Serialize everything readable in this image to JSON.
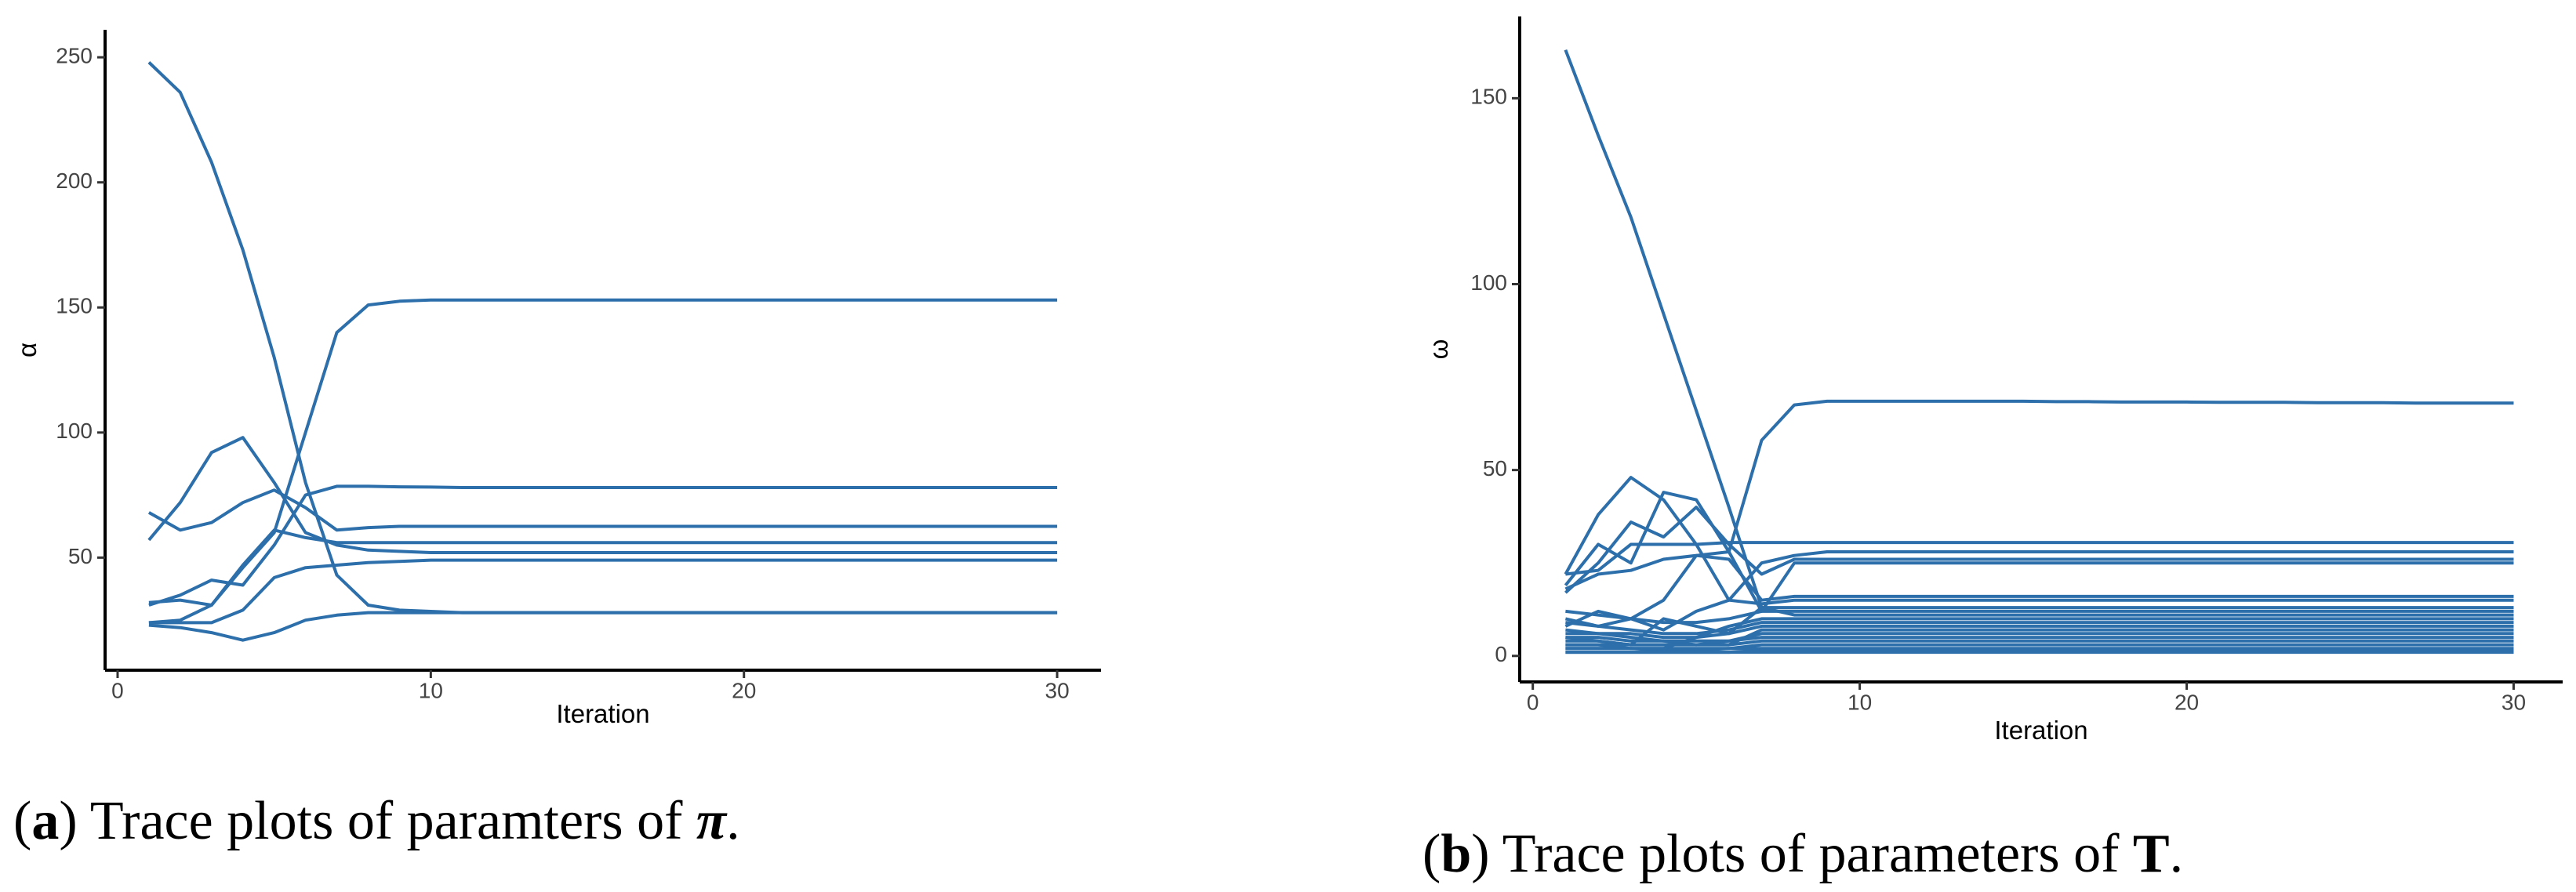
{
  "chart_data": [
    {
      "type": "line",
      "x_label": "Iteration",
      "y_label": "α",
      "color": "#2c6fab",
      "caption": {
        "prefix": "(",
        "label": "a",
        "text": ") Trace plots of paramters of ",
        "symbol": "π",
        "suffix": "."
      },
      "x": [
        1,
        2,
        3,
        4,
        5,
        6,
        7,
        8,
        9,
        10,
        11,
        12,
        13,
        14,
        15,
        16,
        17,
        18,
        19,
        20,
        21,
        22,
        23,
        24,
        25,
        26,
        27,
        28,
        29,
        30
      ],
      "xlim": [
        -0.4,
        31.4
      ],
      "xticks": [
        0,
        10,
        20,
        30
      ],
      "ylim": [
        5,
        261
      ],
      "yticks": [
        50,
        100,
        150,
        200,
        250
      ],
      "series": [
        {
          "values": [
            248,
            236,
            208,
            173,
            130,
            80,
            43,
            31,
            29,
            28.5,
            28,
            28,
            28,
            28,
            28,
            28,
            28,
            28,
            28,
            28,
            28,
            28,
            28,
            28,
            28,
            28,
            28,
            28,
            28,
            28
          ]
        },
        {
          "values": [
            24,
            25,
            31,
            46,
            60,
            100,
            140,
            151,
            152.5,
            153,
            153,
            153,
            153,
            153,
            153,
            153,
            153,
            153,
            153,
            153,
            153,
            153,
            153,
            153,
            153,
            153,
            153,
            153,
            153,
            153
          ]
        },
        {
          "values": [
            23,
            22,
            20,
            17,
            20,
            25,
            27,
            28,
            28,
            28,
            28,
            28,
            28,
            28,
            28,
            28,
            28,
            28,
            28,
            28,
            28,
            28,
            28,
            28,
            28,
            28,
            28,
            28,
            28,
            28
          ]
        },
        {
          "values": [
            57,
            72,
            92,
            98,
            80,
            60,
            55,
            53,
            52.5,
            52,
            52,
            52,
            52,
            52,
            52,
            52,
            52,
            52,
            52,
            52,
            52,
            52,
            52,
            52,
            52,
            52,
            52,
            52,
            52,
            52
          ]
        },
        {
          "values": [
            31,
            35,
            41,
            39,
            55,
            75,
            78.5,
            78.5,
            78.3,
            78.2,
            78,
            78,
            78,
            78,
            78,
            78,
            78,
            78,
            78,
            78,
            78,
            78,
            78,
            78,
            78,
            78,
            78,
            78,
            78,
            78
          ]
        },
        {
          "values": [
            68,
            61,
            64,
            72,
            77,
            70,
            61,
            62,
            62.5,
            62.5,
            62.5,
            62.5,
            62.5,
            62.5,
            62.5,
            62.5,
            62.5,
            62.5,
            62.5,
            62.5,
            62.5,
            62.5,
            62.5,
            62.5,
            62.5,
            62.5,
            62.5,
            62.5,
            62.5,
            62.5
          ]
        },
        {
          "values": [
            32,
            33,
            31,
            47,
            61,
            58,
            56,
            56,
            56,
            56,
            56,
            56,
            56,
            56,
            56,
            56,
            56,
            56,
            56,
            56,
            56,
            56,
            56,
            56,
            56,
            56,
            56,
            56,
            56,
            56
          ]
        },
        {
          "values": [
            24,
            24,
            24,
            29,
            42,
            46,
            47,
            48,
            48.5,
            49,
            49,
            49,
            49,
            49,
            49,
            49,
            49,
            49,
            49,
            49,
            49,
            49,
            49,
            49,
            49,
            49,
            49,
            49,
            49,
            49
          ]
        }
      ]
    },
    {
      "type": "line",
      "x_label": "Iteration",
      "y_label": "ω",
      "color": "#2c6fab",
      "caption": {
        "prefix": "(",
        "label": "b",
        "text": ") Trace plots of parameters of ",
        "symbol": "T",
        "suffix": "."
      },
      "x": [
        1,
        2,
        3,
        4,
        5,
        6,
        7,
        8,
        9,
        10,
        11,
        12,
        13,
        14,
        15,
        16,
        17,
        18,
        19,
        20,
        21,
        22,
        23,
        24,
        25,
        26,
        27,
        28,
        29,
        30
      ],
      "xlim": [
        -0.4,
        31.5
      ],
      "xticks": [
        0,
        10,
        20,
        30
      ],
      "ylim": [
        -7,
        172
      ],
      "yticks": [
        0,
        50,
        100,
        150
      ],
      "series": [
        {
          "values": [
            163,
            140,
            118,
            92,
            66,
            40,
            13,
            11,
            11,
            11,
            11,
            11,
            11,
            11,
            11,
            11,
            11,
            11,
            11,
            11,
            11,
            11,
            11,
            11,
            11,
            11,
            11,
            11,
            11,
            11
          ]
        },
        {
          "values": [
            18,
            22,
            23,
            26,
            27,
            28,
            58,
            67.5,
            68.5,
            68.5,
            68.5,
            68.5,
            68.5,
            68.5,
            68.5,
            68.4,
            68.4,
            68.3,
            68.3,
            68.3,
            68.2,
            68.2,
            68.2,
            68.1,
            68.1,
            68.1,
            68,
            68,
            68,
            68
          ]
        },
        {
          "values": [
            22,
            38,
            48,
            42,
            30,
            15,
            25,
            27,
            28,
            28,
            28,
            28,
            28,
            28,
            28,
            28,
            28,
            28,
            28,
            28,
            28,
            28,
            28,
            28,
            28,
            28,
            28,
            28,
            28,
            28
          ]
        },
        {
          "values": [
            19,
            30,
            25,
            44,
            42,
            28,
            12,
            25,
            25,
            25,
            25,
            25,
            25,
            25,
            25,
            25,
            25,
            25,
            25,
            25,
            25,
            25,
            25,
            25,
            25,
            25,
            25,
            25,
            25,
            25
          ]
        },
        {
          "values": [
            17,
            25,
            36,
            32,
            40,
            30,
            22,
            26,
            26,
            26,
            26,
            26,
            26,
            26,
            26,
            26,
            26,
            26,
            26,
            26,
            26,
            26,
            26,
            26,
            26,
            26,
            26,
            26,
            26,
            26
          ]
        },
        {
          "values": [
            22,
            23,
            30,
            30,
            30,
            30.5,
            30.5,
            30.5,
            30.5,
            30.5,
            30.5,
            30.5,
            30.5,
            30.5,
            30.5,
            30.5,
            30.5,
            30.5,
            30.5,
            30.5,
            30.5,
            30.5,
            30.5,
            30.5,
            30.5,
            30.5,
            30.5,
            30.5,
            30.5,
            30.5
          ]
        },
        {
          "values": [
            10,
            8,
            10,
            15,
            27,
            26,
            15,
            16,
            16,
            16,
            16,
            16,
            16,
            16,
            16,
            16,
            16,
            16,
            16,
            16,
            16,
            16,
            16,
            16,
            16,
            16,
            16,
            16,
            16,
            16
          ]
        },
        {
          "values": [
            8,
            12,
            10,
            7,
            12,
            15,
            14,
            15,
            15,
            15,
            15,
            15,
            15,
            15,
            15,
            15,
            15,
            15,
            15,
            15,
            15,
            15,
            15,
            15,
            15,
            15,
            15,
            15,
            15,
            15
          ]
        },
        {
          "values": [
            5,
            4,
            3,
            10,
            8,
            6,
            13,
            13,
            13,
            13,
            13,
            13,
            13,
            13,
            13,
            13,
            13,
            13,
            13,
            13,
            13,
            13,
            13,
            13,
            13,
            13,
            13,
            13,
            13,
            13
          ]
        },
        {
          "values": [
            12,
            11,
            10,
            9,
            9,
            10,
            12,
            12,
            12,
            12,
            12,
            12,
            12,
            12,
            12,
            12,
            12,
            12,
            12,
            12,
            12,
            12,
            12,
            12,
            12,
            12,
            12,
            12,
            12,
            12
          ]
        },
        {
          "values": [
            3,
            3,
            2,
            2,
            5,
            8,
            10,
            10,
            10,
            10,
            10,
            10,
            10,
            10,
            10,
            10,
            10,
            10,
            10,
            10,
            10,
            10,
            10,
            10,
            10,
            10,
            10,
            10,
            10,
            10
          ]
        },
        {
          "values": [
            9,
            8,
            7,
            6,
            6,
            7,
            9,
            9,
            9,
            9,
            9,
            9,
            9,
            9,
            9,
            9,
            9,
            9,
            9,
            9,
            9,
            9,
            9,
            9,
            9,
            9,
            9,
            9,
            9,
            9
          ]
        },
        {
          "values": [
            7,
            6,
            6,
            5,
            5,
            6,
            8,
            8,
            8,
            8,
            8,
            8,
            8,
            8,
            8,
            8,
            8,
            8,
            8,
            8,
            8,
            8,
            8,
            8,
            8,
            8,
            8,
            8,
            8,
            8
          ]
        },
        {
          "values": [
            6,
            6,
            5,
            4,
            3,
            3,
            7,
            7,
            7,
            7,
            7,
            7,
            7,
            7,
            7,
            7,
            7,
            7,
            7,
            7,
            7,
            7,
            7,
            7,
            7,
            7,
            7,
            7,
            7,
            7
          ]
        },
        {
          "values": [
            5,
            5,
            4,
            4,
            4,
            4,
            6,
            6,
            6,
            6,
            6,
            6,
            6,
            6,
            6,
            6,
            6,
            6,
            6,
            6,
            6,
            6,
            6,
            6,
            6,
            6,
            6,
            6,
            6,
            6
          ]
        },
        {
          "values": [
            4,
            4,
            3,
            3,
            3,
            4,
            5,
            5,
            5,
            5,
            5,
            5,
            5,
            5,
            5,
            5,
            5,
            5,
            5,
            5,
            5,
            5,
            5,
            5,
            5,
            5,
            5,
            5,
            5,
            5
          ]
        },
        {
          "values": [
            3,
            3,
            3,
            3,
            3,
            3,
            4,
            4,
            4,
            4,
            4,
            4,
            4,
            4,
            4,
            4,
            4,
            4,
            4,
            4,
            4,
            4,
            4,
            4,
            4,
            4,
            4,
            4,
            4,
            4
          ]
        },
        {
          "values": [
            2,
            2,
            2,
            1.5,
            1.5,
            2,
            3,
            3,
            3,
            3,
            3,
            3,
            3,
            3,
            3,
            3,
            3,
            3,
            3,
            3,
            3,
            3,
            3,
            3,
            3,
            3,
            3,
            3,
            3,
            3
          ]
        },
        {
          "values": [
            2,
            2,
            2,
            2,
            2,
            2,
            2,
            2,
            2,
            2,
            2,
            2,
            2,
            2,
            2,
            2,
            2,
            2,
            2,
            2,
            2,
            2,
            2,
            2,
            2,
            2,
            2,
            2,
            2,
            2
          ]
        },
        {
          "values": [
            1,
            1,
            1,
            1,
            1,
            1,
            1.5,
            1.5,
            1.5,
            1.5,
            1.5,
            1.5,
            1.5,
            1.5,
            1.5,
            1.5,
            1.5,
            1.5,
            1.5,
            1.5,
            1.5,
            1.5,
            1.5,
            1.5,
            1.5,
            1.5,
            1.5,
            1.5,
            1.5,
            1.5
          ]
        },
        {
          "values": [
            1,
            1,
            1,
            1,
            1,
            1,
            1,
            1,
            1,
            1,
            1,
            1,
            1,
            1,
            1,
            1,
            1,
            1,
            1,
            1,
            1,
            1,
            1,
            1,
            1,
            1,
            1,
            1,
            1,
            1
          ]
        }
      ]
    }
  ]
}
